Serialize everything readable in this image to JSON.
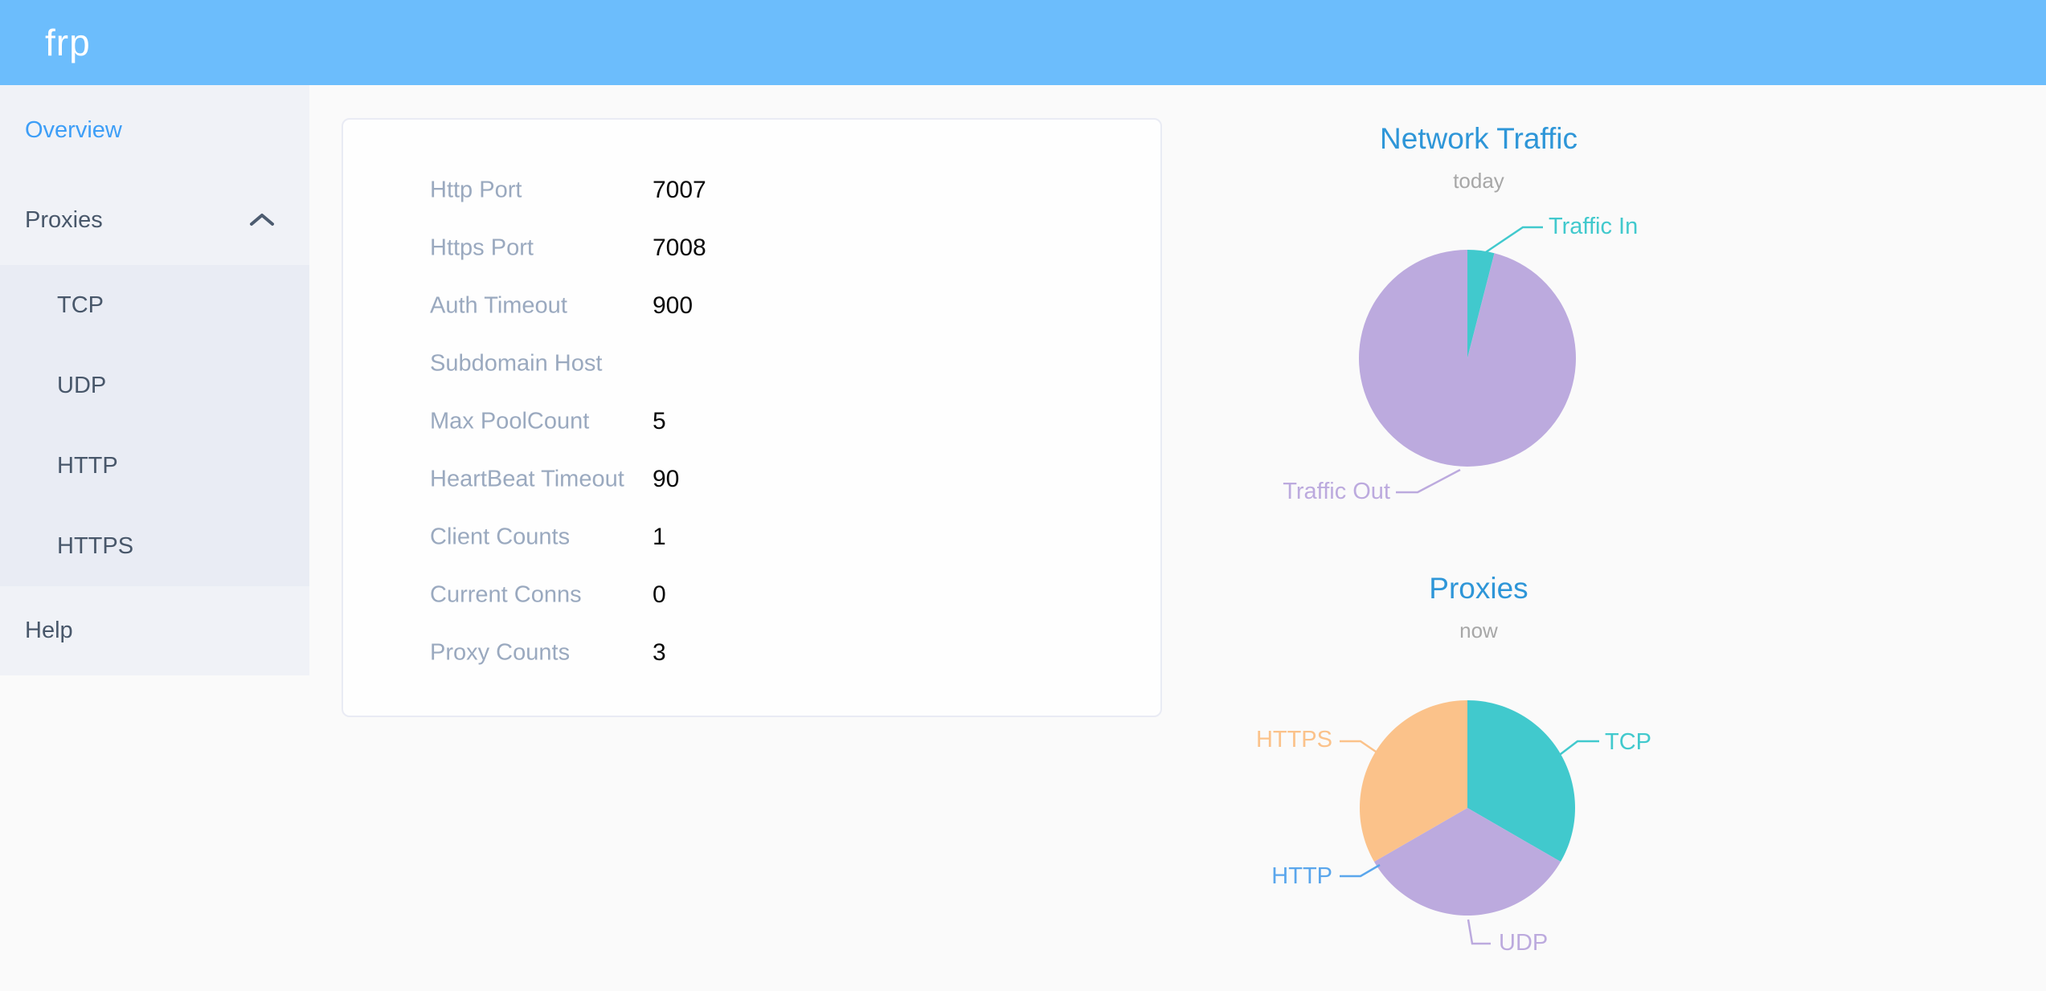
{
  "header": {
    "logo": "frp"
  },
  "sidebar": {
    "items": {
      "overview": {
        "label": "Overview",
        "active": true
      },
      "proxies": {
        "label": "Proxies",
        "expanded": true
      },
      "tcp": {
        "label": "TCP"
      },
      "udp": {
        "label": "UDP"
      },
      "http": {
        "label": "HTTP"
      },
      "https": {
        "label": "HTTPS"
      },
      "help": {
        "label": "Help"
      }
    }
  },
  "overview_table": {
    "rows": [
      {
        "label": "Http Port",
        "value": "7007"
      },
      {
        "label": "Https Port",
        "value": "7008"
      },
      {
        "label": "Auth Timeout",
        "value": "900"
      },
      {
        "label": "Subdomain Host",
        "value": ""
      },
      {
        "label": "Max PoolCount",
        "value": "5"
      },
      {
        "label": "HeartBeat Timeout",
        "value": "90"
      },
      {
        "label": "Client Counts",
        "value": "1"
      },
      {
        "label": "Current Conns",
        "value": "0"
      },
      {
        "label": "Proxy Counts",
        "value": "3"
      }
    ]
  },
  "chart_data": [
    {
      "type": "pie",
      "title": "Network Traffic",
      "subtitle": "today",
      "legend": "off",
      "start_angle_deg": 90,
      "clockwise": true,
      "series": [
        {
          "name": "Traffic In",
          "value": 4,
          "color": "#41c9cd"
        },
        {
          "name": "Traffic Out",
          "value": 96,
          "color": "#bcaade"
        }
      ]
    },
    {
      "type": "pie",
      "title": "Proxies",
      "subtitle": "now",
      "legend": "off",
      "start_angle_deg": 90,
      "clockwise": true,
      "series": [
        {
          "name": "TCP",
          "value": 1,
          "color": "#41c9cd"
        },
        {
          "name": "UDP",
          "value": 1,
          "color": "#bcaade"
        },
        {
          "name": "HTTP",
          "value": 0,
          "color": "#5aa6ec"
        },
        {
          "name": "HTTPS",
          "value": 1,
          "color": "#fbc28a"
        }
      ]
    }
  ],
  "ui_colors": {
    "header_bg": "#6cbdfc",
    "sidebar_active": "#3d9ef7",
    "chart_title_blue": "#2e96d8",
    "chart_subtitle_gray": "#a7a7a7"
  }
}
